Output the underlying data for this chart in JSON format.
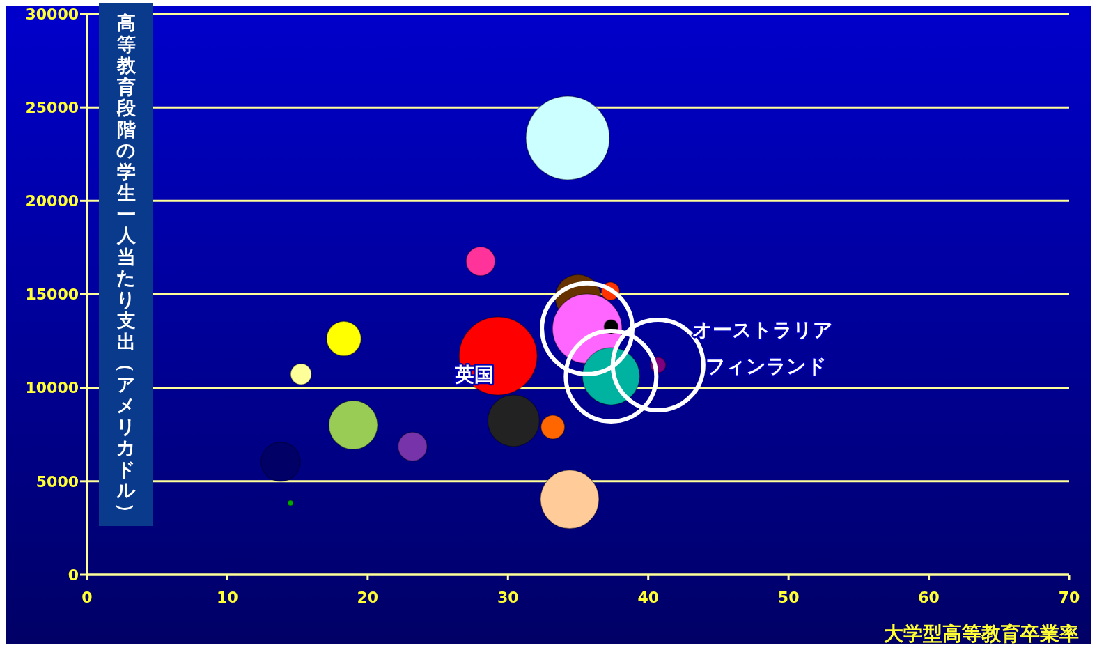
{
  "chart_data": {
    "type": "bubble",
    "xlabel": "大学型高等教育卒業率",
    "ylabel": "高等教育段階の学生一人当たり支出（アメリカドル）",
    "x": [
      34.26,
      28.05,
      35.0,
      37.3,
      35.65,
      37.35,
      29.3,
      37.35,
      40.7,
      18.3,
      15.25,
      18.97,
      23.2,
      30.4,
      33.2,
      13.8,
      14.5,
      34.4
    ],
    "values": [
      23370,
      16770,
      14830,
      15170,
      13160,
      13270,
      11700,
      10620,
      11220,
      12630,
      10730,
      8010,
      6860,
      8240,
      7900,
      6040,
      3840,
      4030
    ],
    "sizes": [
      1.0,
      0.12,
      0.3,
      0.047,
      0.69,
      0.028,
      0.87,
      0.47,
      0.034,
      0.17,
      0.0625,
      0.34,
      0.12,
      0.38,
      0.08,
      0.22,
      0.0044,
      0.49
    ],
    "colors": [
      "#ccffff",
      "#ff3399",
      "#663300",
      "#ff3300",
      "#ff66ff",
      "#000000",
      "#ff0000",
      "#00b3a0",
      "#800080",
      "#ffff00",
      "#ffff99",
      "#99cc55",
      "#7733aa",
      "#222222",
      "#ff6600",
      "#000066",
      "#00aa00",
      "#ffcc99"
    ],
    "xlim": [
      0,
      70
    ],
    "xticks": [
      0,
      10,
      20,
      30,
      40,
      50,
      60,
      70
    ],
    "ylim": [
      0,
      30000
    ],
    "yticks": [
      0,
      5000,
      10000,
      15000,
      20000,
      25000,
      30000
    ],
    "grid": "y",
    "annotations": [
      {
        "text": "英国",
        "x": 29.3,
        "y": 11700
      },
      "オーストラリア",
      "フィンランド"
    ]
  }
}
